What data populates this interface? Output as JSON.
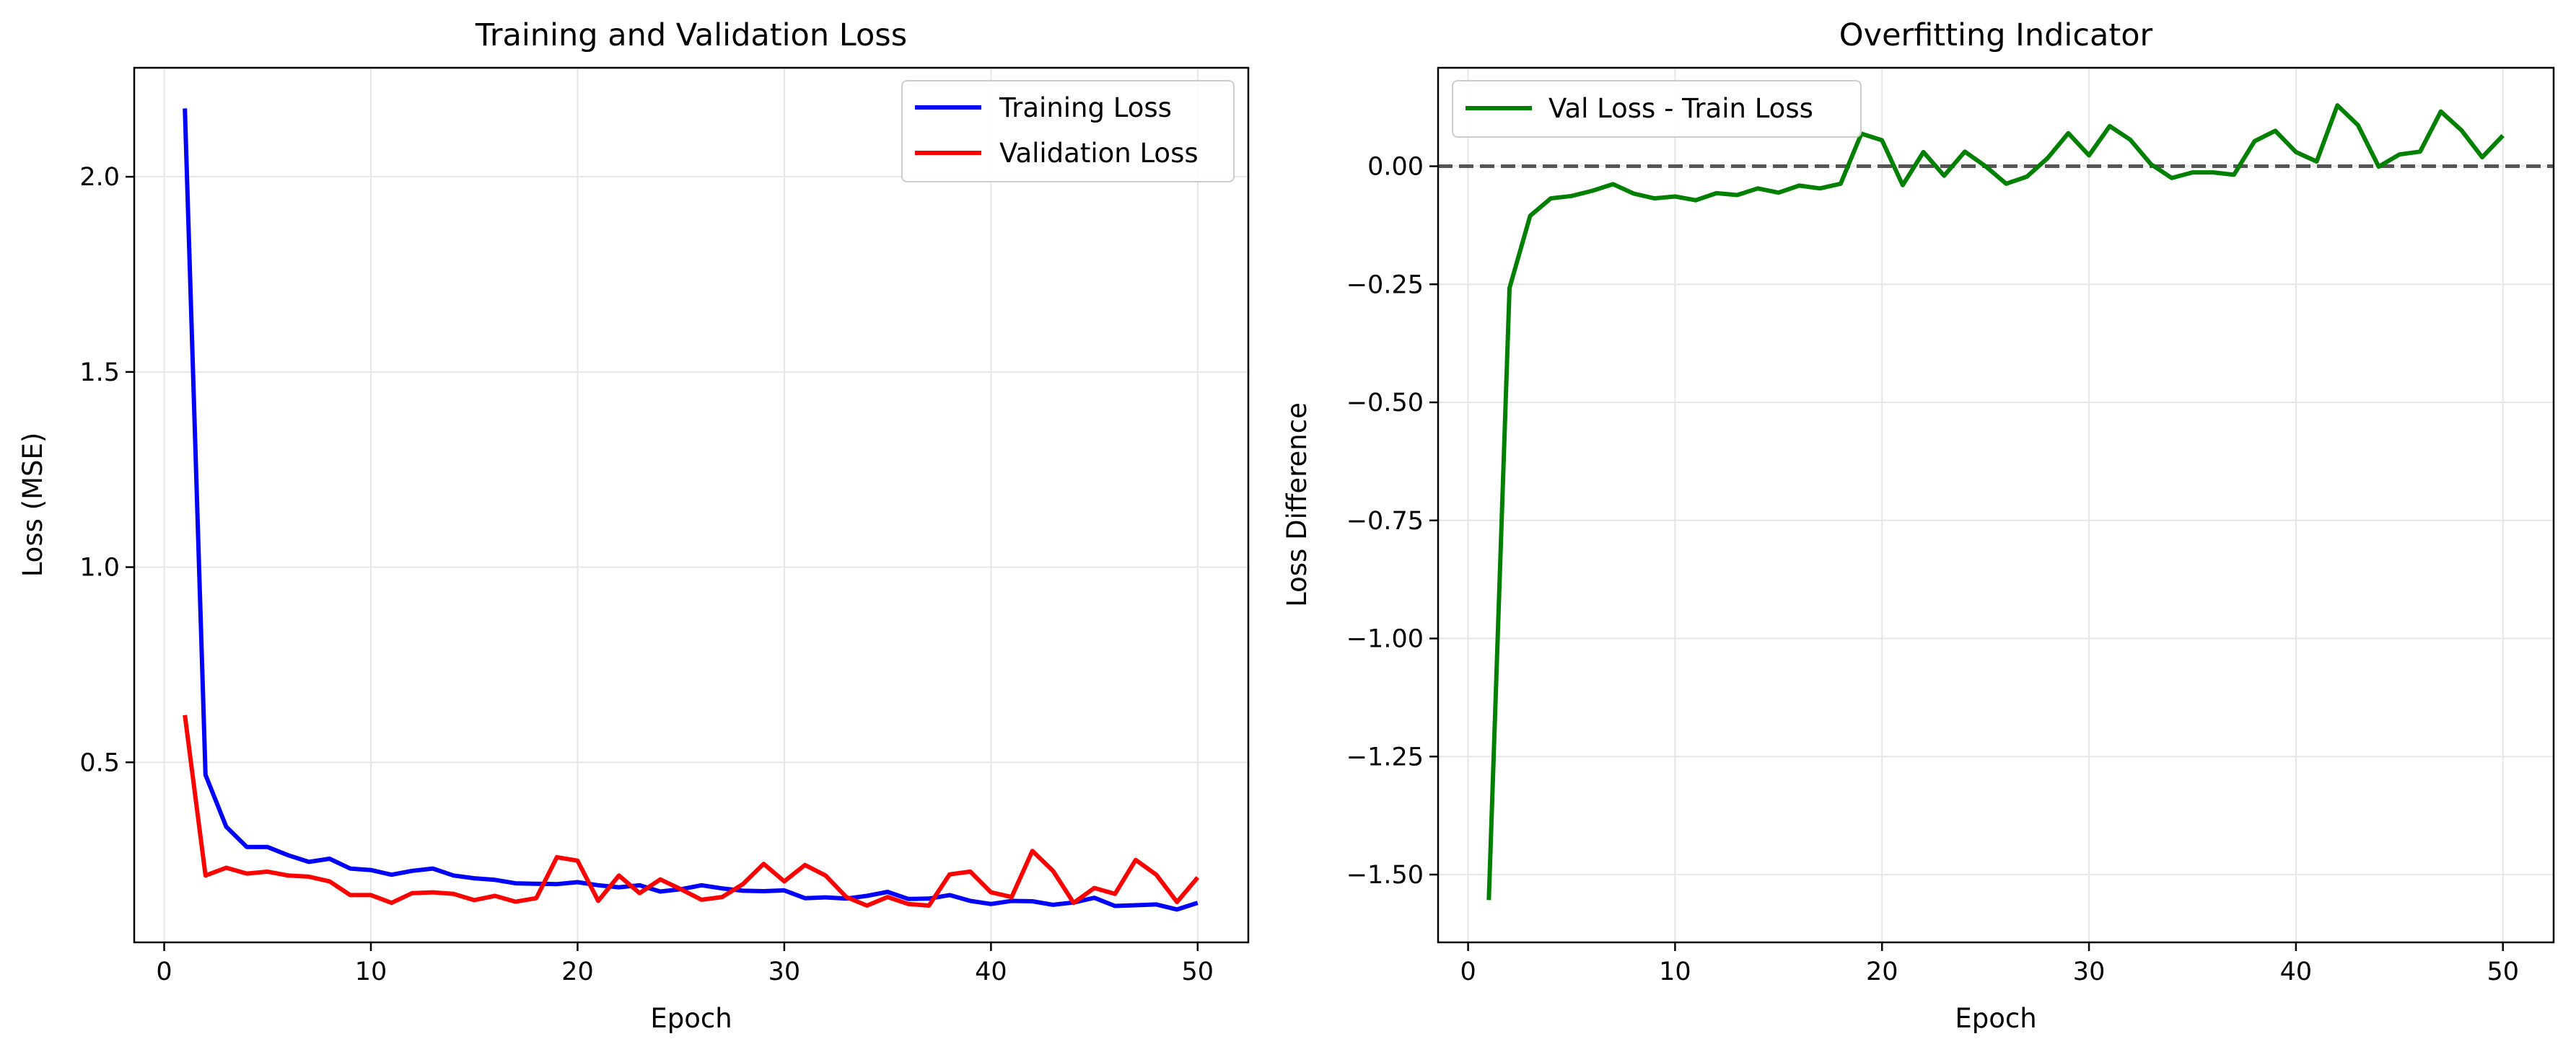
{
  "chart_data": [
    {
      "type": "line",
      "title": "Training and Validation Loss",
      "xlabel": "Epoch",
      "ylabel": "Loss (MSE)",
      "xlim": [
        -1.45,
        52.45
      ],
      "ylim": [
        0.0388,
        2.2792
      ],
      "xticks": [
        0,
        10,
        20,
        30,
        40,
        50
      ],
      "yticks": [
        0.5,
        1.0,
        1.5,
        2.0
      ],
      "xtick_labels": [
        "0",
        "10",
        "20",
        "30",
        "40",
        "50"
      ],
      "ytick_labels": [
        "0.5",
        "1.0",
        "1.5",
        "2.0"
      ],
      "grid": true,
      "legend_position": "top-right",
      "x": [
        1,
        2,
        3,
        4,
        5,
        6,
        7,
        8,
        9,
        10,
        11,
        12,
        13,
        14,
        15,
        16,
        17,
        18,
        19,
        20,
        21,
        22,
        23,
        24,
        25,
        26,
        27,
        28,
        29,
        30,
        31,
        32,
        33,
        34,
        35,
        36,
        37,
        38,
        39,
        40,
        41,
        42,
        43,
        44,
        45,
        46,
        47,
        48,
        49,
        50
      ],
      "series": [
        {
          "name": "Training Loss",
          "color": "#0000ff",
          "values": [
            2.175,
            0.468,
            0.335,
            0.283,
            0.283,
            0.262,
            0.245,
            0.253,
            0.228,
            0.224,
            0.212,
            0.222,
            0.228,
            0.21,
            0.203,
            0.199,
            0.19,
            0.189,
            0.188,
            0.193,
            0.185,
            0.18,
            0.185,
            0.169,
            0.175,
            0.185,
            0.177,
            0.171,
            0.17,
            0.172,
            0.152,
            0.154,
            0.151,
            0.158,
            0.168,
            0.15,
            0.151,
            0.16,
            0.145,
            0.137,
            0.145,
            0.144,
            0.135,
            0.141,
            0.153,
            0.132,
            0.134,
            0.136,
            0.123,
            0.14
          ]
        },
        {
          "name": "Validation Loss",
          "color": "#ff0000",
          "values": [
            0.621,
            0.21,
            0.23,
            0.215,
            0.22,
            0.21,
            0.207,
            0.195,
            0.16,
            0.16,
            0.14,
            0.165,
            0.167,
            0.163,
            0.147,
            0.158,
            0.143,
            0.152,
            0.257,
            0.248,
            0.145,
            0.21,
            0.165,
            0.2,
            0.175,
            0.148,
            0.155,
            0.188,
            0.24,
            0.195,
            0.237,
            0.21,
            0.155,
            0.133,
            0.155,
            0.137,
            0.133,
            0.213,
            0.22,
            0.167,
            0.155,
            0.273,
            0.222,
            0.14,
            0.178,
            0.163,
            0.25,
            0.212,
            0.142,
            0.205
          ]
        }
      ]
    },
    {
      "type": "line",
      "title": "Overfitting Indicator",
      "xlabel": "Epoch",
      "ylabel": "Loss Difference",
      "xlim": [
        -1.45,
        52.45
      ],
      "ylim": [
        -1.6435,
        0.2085
      ],
      "xticks": [
        0,
        10,
        20,
        30,
        40,
        50
      ],
      "yticks": [
        -1.5,
        -1.25,
        -1.0,
        -0.75,
        -0.5,
        -0.25,
        0.0
      ],
      "xtick_labels": [
        "0",
        "10",
        "20",
        "30",
        "40",
        "50"
      ],
      "ytick_labels": [
        "−1.50",
        "−1.25",
        "−1.00",
        "−0.75",
        "−0.50",
        "−0.25",
        "0.00"
      ],
      "grid": true,
      "legend_position": "top-left",
      "reference_line": {
        "y": 0.0,
        "color": "#555555",
        "style": "dashed"
      },
      "x": [
        1,
        2,
        3,
        4,
        5,
        6,
        7,
        8,
        9,
        10,
        11,
        12,
        13,
        14,
        15,
        16,
        17,
        18,
        19,
        20,
        21,
        22,
        23,
        24,
        25,
        26,
        27,
        28,
        29,
        30,
        31,
        32,
        33,
        34,
        35,
        36,
        37,
        38,
        39,
        40,
        41,
        42,
        43,
        44,
        45,
        46,
        47,
        48,
        49,
        50
      ],
      "series": [
        {
          "name": "Val Loss - Train Loss",
          "color": "#008000",
          "values": [
            -1.554,
            -0.258,
            -0.105,
            -0.068,
            -0.063,
            -0.052,
            -0.038,
            -0.058,
            -0.068,
            -0.064,
            -0.072,
            -0.057,
            -0.061,
            -0.047,
            -0.056,
            -0.041,
            -0.047,
            -0.037,
            0.069,
            0.055,
            -0.04,
            0.03,
            -0.02,
            0.031,
            0.0,
            -0.037,
            -0.022,
            0.017,
            0.07,
            0.023,
            0.085,
            0.056,
            0.004,
            -0.025,
            -0.013,
            -0.013,
            -0.018,
            0.053,
            0.075,
            0.03,
            0.01,
            0.129,
            0.087,
            -0.001,
            0.025,
            0.031,
            0.116,
            0.076,
            0.019,
            0.065
          ]
        }
      ]
    }
  ]
}
